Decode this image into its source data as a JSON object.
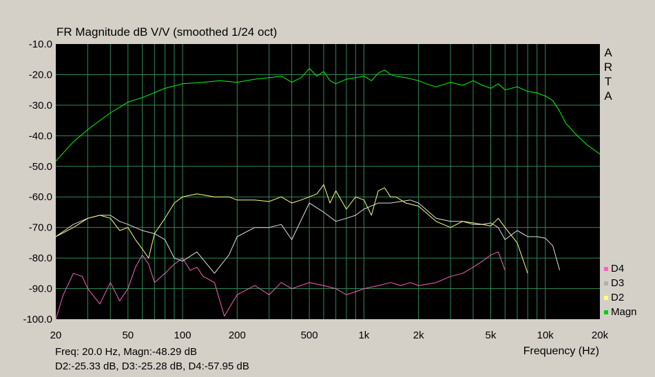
{
  "title": "FR Magnitude dB V/V (smoothed 1/24 oct)",
  "brand": [
    "A",
    "R",
    "T",
    "A"
  ],
  "status": {
    "line1": "Freq: 20.0 Hz, Magn:-48.29 dB",
    "line2": "D2:-25.33 dB, D3:-25.28 dB, D4:-57.95 dB"
  },
  "chart_data": {
    "type": "line",
    "xlabel": "Frequency (Hz)",
    "ylabel": "",
    "x_scale": "log",
    "xlim": [
      20,
      20000
    ],
    "ylim": [
      -100,
      -10
    ],
    "grid": true,
    "legend_position": "bottom-right",
    "x_ticks": [
      20,
      50,
      100,
      200,
      500,
      1000,
      2000,
      5000,
      10000,
      20000
    ],
    "x_tick_labels": [
      "20",
      "50",
      "100",
      "200",
      "500",
      "1k",
      "2k",
      "5k",
      "10k",
      "20k"
    ],
    "y_ticks": [
      -10,
      -20,
      -30,
      -40,
      -50,
      -60,
      -70,
      -80,
      -90,
      -100
    ],
    "y_tick_labels": [
      "-10.0",
      "-20.0",
      "-30.0",
      "-40.0",
      "-50.0",
      "-60.0",
      "-70.0",
      "-80.0",
      "-90.0",
      "-100.0"
    ],
    "series": [
      {
        "name": "Magn",
        "color": "#00ff00",
        "x": [
          20,
          25,
          30,
          35,
          40,
          50,
          60,
          80,
          100,
          130,
          160,
          200,
          250,
          300,
          350,
          400,
          450,
          500,
          550,
          600,
          650,
          700,
          800,
          900,
          1000,
          1100,
          1200,
          1300,
          1400,
          1500,
          1700,
          2000,
          2200,
          2500,
          3000,
          3500,
          4000,
          4500,
          5000,
          5500,
          6000,
          7000,
          8000,
          9000,
          10000,
          11000,
          12000,
          13000,
          15000,
          17000,
          20000
        ],
        "y": [
          -48.3,
          -42,
          -38,
          -35,
          -32.5,
          -29,
          -27.5,
          -24.5,
          -23,
          -22.5,
          -22,
          -22.5,
          -21.5,
          -21,
          -20.5,
          -22.5,
          -21,
          -18,
          -20.5,
          -19,
          -22,
          -23,
          -21.5,
          -21,
          -20.5,
          -22,
          -19.5,
          -18.5,
          -20,
          -20.5,
          -21,
          -22,
          -23,
          -24,
          -22.5,
          -23.5,
          -22,
          -23.5,
          -24.5,
          -23,
          -25,
          -24,
          -25.5,
          -26,
          -27,
          -28.5,
          -32,
          -36,
          -40,
          -43,
          -46
        ]
      },
      {
        "name": "D2",
        "color": "#ffff80",
        "x": [
          20,
          25,
          30,
          35,
          40,
          45,
          50,
          55,
          60,
          65,
          70,
          80,
          90,
          100,
          120,
          150,
          180,
          200,
          250,
          300,
          350,
          400,
          450,
          500,
          550,
          600,
          650,
          700,
          800,
          900,
          1000,
          1100,
          1200,
          1300,
          1400,
          1500,
          1700,
          2000,
          2500,
          3000,
          3500,
          4000,
          4500,
          5000,
          5500,
          6000,
          7000,
          8000
        ],
        "y": [
          -73,
          -70,
          -67,
          -66,
          -67,
          -71,
          -70,
          -74,
          -77,
          -80,
          -72,
          -67,
          -62,
          -60,
          -59,
          -60,
          -60,
          -61,
          -61,
          -61.5,
          -60,
          -62,
          -61,
          -60,
          -59,
          -56,
          -62,
          -58,
          -64,
          -60,
          -61,
          -66,
          -58,
          -57,
          -60,
          -60,
          -62,
          -63,
          -68,
          -70,
          -68,
          -68.5,
          -69,
          -69.5,
          -67,
          -70,
          -75,
          -85
        ]
      },
      {
        "name": "D3",
        "color": "#e0e0e0",
        "x": [
          20,
          25,
          30,
          35,
          40,
          45,
          50,
          60,
          70,
          80,
          90,
          100,
          120,
          150,
          180,
          200,
          250,
          300,
          350,
          400,
          500,
          600,
          700,
          800,
          900,
          1000,
          1200,
          1400,
          1600,
          1800,
          2000,
          2500,
          3000,
          3500,
          4000,
          4500,
          5000,
          5500,
          6000,
          7000,
          8000,
          9000,
          10000,
          11000,
          12000
        ],
        "y": [
          -73,
          -69,
          -67,
          -66,
          -66,
          -68,
          -69,
          -71,
          -72,
          -74,
          -80,
          -81,
          -78,
          -85,
          -79,
          -73,
          -70,
          -70,
          -69,
          -74,
          -62,
          -65,
          -68,
          -67,
          -66,
          -64,
          -62,
          -62,
          -61.5,
          -61,
          -62,
          -67,
          -68,
          -68,
          -69,
          -69,
          -68.5,
          -70,
          -74,
          -71,
          -73,
          -73,
          -73.5,
          -76,
          -84
        ]
      },
      {
        "name": "D4",
        "color": "#ff60c0",
        "x": [
          20,
          22,
          25,
          28,
          30,
          35,
          40,
          45,
          50,
          55,
          60,
          65,
          70,
          80,
          90,
          100,
          110,
          120,
          130,
          150,
          170,
          200,
          250,
          300,
          350,
          400,
          500,
          600,
          700,
          800,
          900,
          1000,
          1200,
          1400,
          1600,
          1800,
          2000,
          2500,
          3000,
          3500,
          4000,
          4500,
          5000,
          5500,
          6000
        ],
        "y": [
          -100,
          -92,
          -85,
          -86,
          -90,
          -95,
          -88,
          -94,
          -90,
          -83,
          -79,
          -82,
          -88,
          -85,
          -82,
          -80,
          -84,
          -83,
          -86,
          -88,
          -99,
          -92,
          -89,
          -92,
          -88,
          -90,
          -88,
          -89,
          -90,
          -92,
          -91,
          -90,
          -89,
          -88,
          -89,
          -88,
          -89,
          -88,
          -86,
          -85,
          -83,
          -81,
          -79,
          -78,
          -84
        ]
      }
    ],
    "legend": [
      {
        "label": "D4",
        "color": "#ff60c0"
      },
      {
        "label": "D3",
        "color": "#b0b0b0"
      },
      {
        "label": "D2",
        "color": "#ffff80"
      },
      {
        "label": "Magn",
        "color": "#00d000"
      }
    ]
  }
}
